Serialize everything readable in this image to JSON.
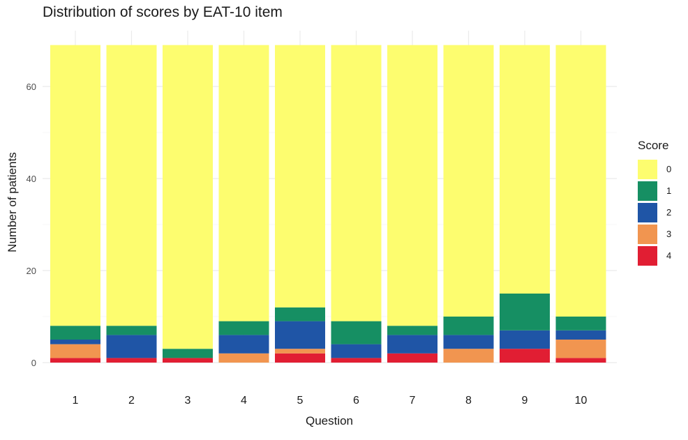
{
  "chart_data": {
    "type": "bar",
    "stacked": true,
    "title": "Distribution of scores by EAT-10 item",
    "xlabel": "Question",
    "ylabel": "Number of patients",
    "categories": [
      "1",
      "2",
      "3",
      "4",
      "5",
      "6",
      "7",
      "8",
      "9",
      "10"
    ],
    "yticks": [
      "0",
      "20",
      "40",
      "60"
    ],
    "ylim": [
      0,
      69
    ],
    "legend_title": "Score",
    "legend_position": "right",
    "grid": true,
    "series": [
      {
        "name": "4",
        "color": "#E11E33",
        "values": [
          1,
          1,
          1,
          0,
          2,
          1,
          2,
          0,
          3,
          1
        ]
      },
      {
        "name": "3",
        "color": "#F19550",
        "values": [
          3,
          0,
          0,
          2,
          1,
          0,
          0,
          3,
          0,
          4
        ]
      },
      {
        "name": "2",
        "color": "#1F55A6",
        "values": [
          1,
          5,
          0,
          4,
          6,
          3,
          4,
          3,
          4,
          2
        ]
      },
      {
        "name": "1",
        "color": "#168F63",
        "values": [
          3,
          2,
          2,
          3,
          3,
          5,
          2,
          4,
          8,
          3
        ]
      },
      {
        "name": "0",
        "color": "#FDFD6F",
        "values": [
          61,
          61,
          66,
          60,
          57,
          60,
          61,
          59,
          54,
          59
        ]
      }
    ]
  }
}
